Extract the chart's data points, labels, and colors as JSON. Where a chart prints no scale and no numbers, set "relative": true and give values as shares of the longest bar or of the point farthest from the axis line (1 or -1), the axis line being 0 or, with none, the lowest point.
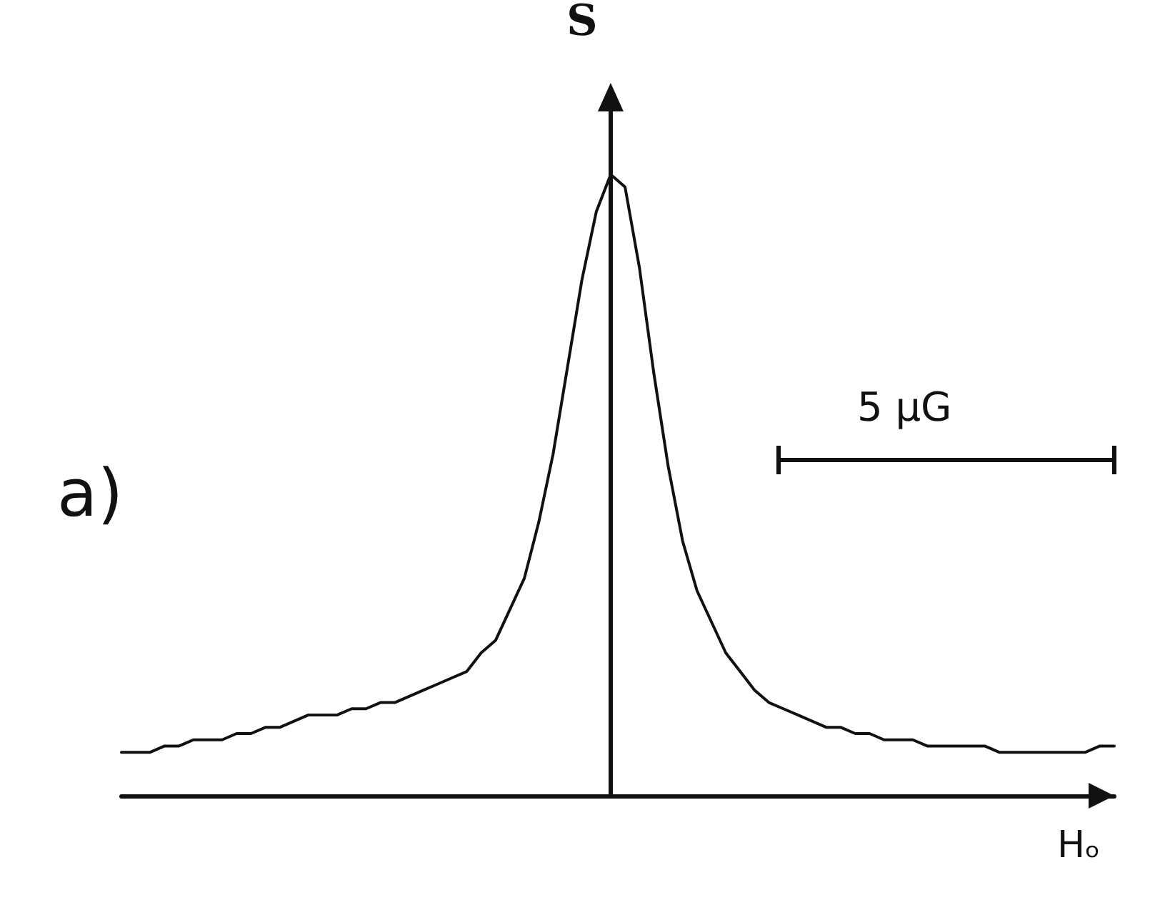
{
  "chart_data": {
    "type": "line",
    "relative": true,
    "xlabel": "Hₒ",
    "ylabel": "S",
    "annotations": [
      "a)",
      "5 μG"
    ],
    "categories": [
      null,
      null,
      null,
      null,
      null,
      null,
      null,
      null,
      null,
      null,
      null,
      null,
      null,
      null,
      null,
      null,
      null,
      null,
      null,
      null,
      null,
      null,
      null,
      null,
      null,
      null,
      null,
      null,
      null,
      null,
      null,
      null,
      null,
      null,
      null,
      null,
      null,
      null,
      null,
      null,
      null,
      null,
      null,
      null,
      null,
      null,
      null,
      null,
      null,
      null,
      null,
      null,
      null,
      null,
      null,
      null,
      null,
      null,
      null,
      null,
      null,
      null,
      null,
      null,
      null,
      null,
      null,
      null,
      null,
      null
    ],
    "series": [
      {
        "color": "#111111",
        "values": [
          0.07,
          0.07,
          0.07,
          0.08,
          0.08,
          0.09,
          0.09,
          0.09,
          0.1,
          0.1,
          0.11,
          0.11,
          0.12,
          0.13,
          0.13,
          0.13,
          0.14,
          0.14,
          0.15,
          0.15,
          0.16,
          0.17,
          0.18,
          0.19,
          0.2,
          0.23,
          0.25,
          0.3,
          0.35,
          0.44,
          0.55,
          0.69,
          0.83,
          0.94,
          1,
          0.98,
          0.85,
          0.68,
          0.53,
          0.41,
          0.33,
          0.28,
          0.23,
          0.2,
          0.17,
          0.15,
          0.14,
          0.13,
          0.12,
          0.11,
          0.11,
          0.1,
          0.1,
          0.09,
          0.09,
          0.09,
          0.08,
          0.08,
          0.08,
          0.08,
          0.08,
          0.07,
          0.07,
          0.07,
          0.07,
          0.07,
          0.07,
          0.07,
          0.08,
          0.08
        ]
      }
    ],
    "tick_labels": false,
    "grid": false
  }
}
